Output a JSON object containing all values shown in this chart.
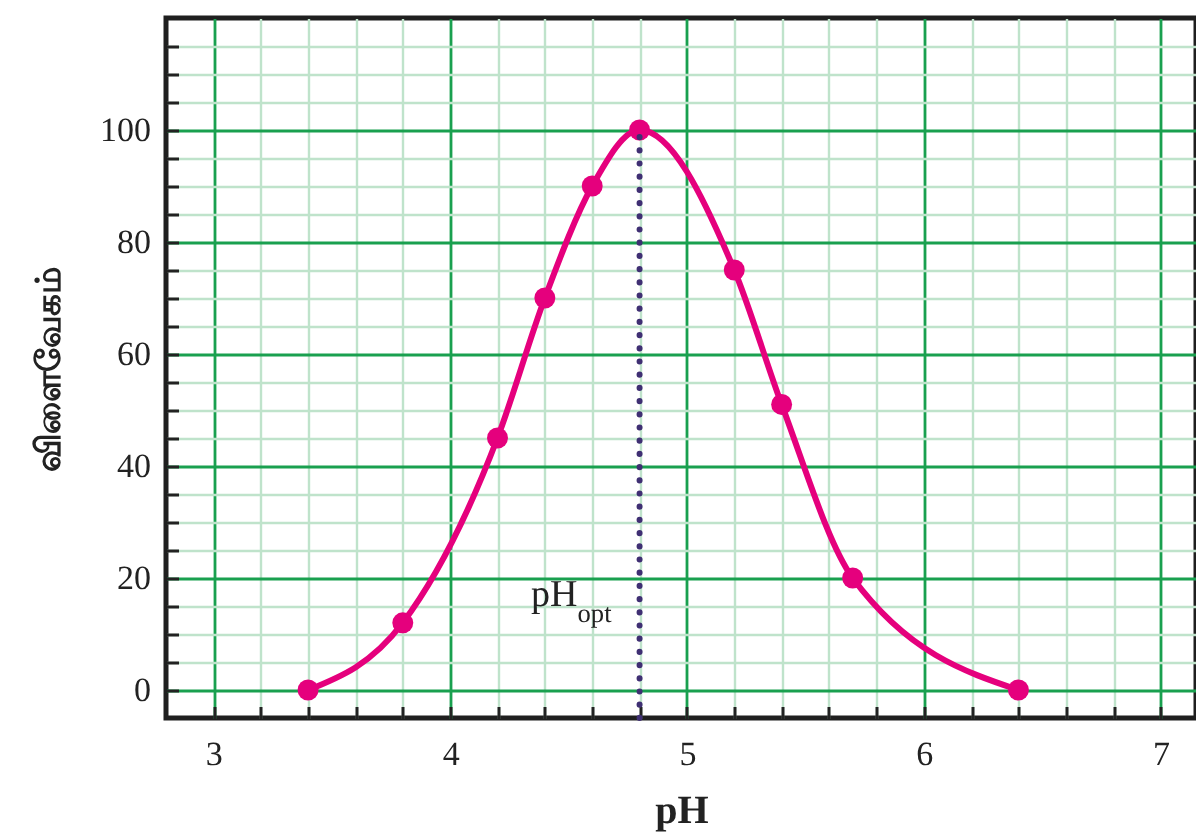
{
  "chart_data": {
    "type": "line",
    "xlabel": "pH",
    "ylabel": "விளைவேகம்",
    "x": [
      3.4,
      3.8,
      4.2,
      4.4,
      4.6,
      4.8,
      5.2,
      5.4,
      5.7,
      6.4
    ],
    "series": [
      {
        "color": "#e5007d",
        "values": [
          0,
          12,
          45,
          70,
          90,
          100,
          75,
          51,
          20,
          0
        ]
      }
    ],
    "xlim": [
      2.8,
      7.15
    ],
    "ylim": [
      -5,
      120
    ],
    "xticks": [
      3,
      {
        "value": 3.2,
        "label": null
      },
      {
        "value": 3.4,
        "label": null
      },
      {
        "value": 3.6,
        "label": null
      },
      {
        "value": 3.8,
        "label": null
      },
      4,
      {
        "value": 4.2,
        "label": null
      },
      {
        "value": 4.4,
        "label": null
      },
      {
        "value": 4.6,
        "label": null
      },
      {
        "value": 4.8,
        "label": null
      },
      5,
      {
        "value": 5.2,
        "label": null
      },
      {
        "value": 5.4,
        "label": null
      },
      {
        "value": 5.6,
        "label": null
      },
      {
        "value": 5.8,
        "label": null
      },
      6,
      {
        "value": 6.2,
        "label": null
      },
      {
        "value": 6.4,
        "label": null
      },
      {
        "value": 6.6,
        "label": null
      },
      {
        "value": 6.8,
        "label": null
      },
      7
    ],
    "yticks": [
      0,
      {
        "value": 5,
        "label": null
      },
      {
        "value": 10,
        "label": null
      },
      {
        "value": 15,
        "label": null
      },
      20,
      {
        "value": 25,
        "label": null
      },
      {
        "value": 30,
        "label": null
      },
      {
        "value": 35,
        "label": null
      },
      40,
      {
        "value": 45,
        "label": null
      },
      {
        "value": 50,
        "label": null
      },
      {
        "value": 55,
        "label": null
      },
      60,
      {
        "value": 65,
        "label": null
      },
      {
        "value": 70,
        "label": null
      },
      {
        "value": 75,
        "label": null
      },
      80,
      {
        "value": 85,
        "label": null
      },
      {
        "value": 90,
        "label": null
      },
      {
        "value": 95,
        "label": null
      },
      100,
      {
        "value": 105,
        "label": null
      },
      {
        "value": 110,
        "label": null
      },
      {
        "value": 115,
        "label": null
      }
    ],
    "grid": true,
    "marker": "circle",
    "line_style": "solid",
    "ref_lines": [
      {
        "axis": "x",
        "value": 4.8,
        "label": "pH$_{opt}$",
        "color": "#3f2f73",
        "line_style": "dotted"
      }
    ]
  }
}
